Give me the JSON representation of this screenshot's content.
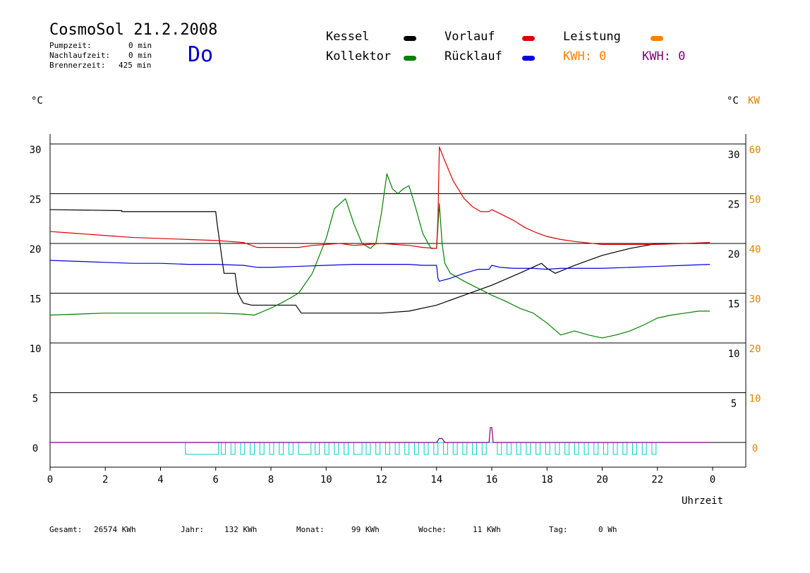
{
  "header": {
    "title": "CosmoSol 21.2.2008",
    "day": "Do",
    "stats": [
      {
        "label": "Pumpzeit:",
        "value": "0 min"
      },
      {
        "label": "Nachlaufzeit:",
        "value": "0 min"
      },
      {
        "label": "Brennerzeit:",
        "value": "425 min"
      }
    ]
  },
  "legend": {
    "kessel": "Kessel",
    "kollektor": "Kollektor",
    "vorlauf": "Vorlauf",
    "ruecklauf": "Rücklauf",
    "leistung": "Leistung",
    "kwh_orange": "KWH: 0",
    "kwh_purple": "KWH: 0"
  },
  "axes": {
    "left_unit": "°C",
    "right_unit": "°C",
    "right_unit2": "KW",
    "xlabel": "Uhrzeit"
  },
  "footer": [
    {
      "label": "Gesamt:",
      "value": "26574 KWh"
    },
    {
      "label": "Jahr:",
      "value": "132 KWh"
    },
    {
      "label": "Monat:",
      "value": "99 KWh"
    },
    {
      "label": "Woche:",
      "value": "11 KWh"
    },
    {
      "label": "Tag:",
      "value": "0 Wh"
    }
  ],
  "colors": {
    "kessel": "#000000",
    "kollektor": "#008000",
    "vorlauf": "#dd0000",
    "ruecklauf": "#0000dd",
    "leistung": "#ff8000",
    "kwh_purple": "#800080",
    "pump": "#00cccc",
    "grid": "#000000"
  },
  "chart_data": {
    "type": "line",
    "xlim": [
      0,
      24
    ],
    "ylim": [
      0,
      30
    ],
    "y2lim": [
      0,
      60
    ],
    "x_ticks": [
      "0",
      "2",
      "4",
      "6",
      "8",
      "10",
      "12",
      "14",
      "16",
      "18",
      "20",
      "22",
      "0"
    ],
    "y_ticks_left": [
      "0",
      "5",
      "10",
      "15",
      "20",
      "25",
      "30"
    ],
    "y_ticks_right": [
      "5",
      "10",
      "15",
      "20",
      "25",
      "30"
    ],
    "y2_ticks": [
      "0",
      "10",
      "20",
      "30",
      "40",
      "50",
      "60"
    ],
    "grid": true,
    "series": [
      {
        "name": "Kessel",
        "color": "#000000",
        "x": [
          0,
          2.6,
          2.6,
          6,
          6.05,
          6.2,
          6.3,
          6.7,
          6.8,
          7.0,
          7.3,
          8,
          8.9,
          9.1,
          12,
          13,
          14,
          15,
          16,
          17,
          17.8,
          18,
          18.3,
          19,
          20,
          21,
          22,
          22.5,
          23,
          23.5
        ],
        "y": [
          23.4,
          23.3,
          23.2,
          23.2,
          22,
          19,
          17,
          17,
          15,
          14,
          13.8,
          13.8,
          13.8,
          13.0,
          13.0,
          13.2,
          13.8,
          14.8,
          15.8,
          17.0,
          18.0,
          17.5,
          17.0,
          17.8,
          18.8,
          19.5,
          20.0,
          20.0,
          20.0,
          20.0
        ]
      },
      {
        "name": "Kollektor",
        "color": "#008000",
        "x": [
          0,
          1,
          2,
          3,
          4,
          5,
          6,
          7,
          7.4,
          8,
          8.5,
          9,
          9.5,
          10,
          10.3,
          10.7,
          11,
          11.3,
          11.6,
          11.8,
          12,
          12.2,
          12.4,
          12.6,
          12.8,
          13,
          13.2,
          13.5,
          13.8,
          14.0,
          14.1,
          14.2,
          14.3,
          14.5,
          15,
          15.5,
          16,
          16.5,
          17,
          17.5,
          18,
          18.5,
          19,
          19.5,
          20,
          20.5,
          21,
          21.5,
          22,
          22.5,
          23,
          23.5,
          23.9
        ],
        "y": [
          12.8,
          12.9,
          13.0,
          13.0,
          13.0,
          13.0,
          13.0,
          12.9,
          12.8,
          13.5,
          14.2,
          15,
          17,
          20.5,
          23.5,
          24.5,
          22,
          20,
          19.5,
          20,
          23,
          27,
          25.5,
          25,
          25.5,
          25.8,
          24,
          21,
          19.5,
          19.5,
          24,
          20,
          18,
          17,
          16.2,
          15.5,
          14.8,
          14.2,
          13.5,
          13.0,
          12.0,
          10.8,
          11.2,
          10.8,
          10.5,
          10.8,
          11.2,
          11.8,
          12.5,
          12.8,
          13.0,
          13.2,
          13.2
        ]
      },
      {
        "name": "Vorlauf",
        "color": "#dd0000",
        "x": [
          0,
          0.5,
          1,
          2,
          3,
          4,
          5,
          6,
          7,
          7.5,
          8,
          9,
          9.5,
          10,
          10.5,
          11,
          11.5,
          12,
          12.5,
          13,
          13.5,
          14,
          14.05,
          14.1,
          14.3,
          14.6,
          15,
          15.3,
          15.6,
          15.9,
          16.0,
          16.3,
          16.8,
          17.2,
          17.6,
          18,
          18.5,
          19,
          20,
          21,
          22,
          23,
          23.9
        ],
        "y": [
          21.2,
          21.1,
          21.0,
          20.8,
          20.6,
          20.5,
          20.4,
          20.3,
          20.1,
          19.6,
          19.6,
          19.6,
          19.8,
          19.9,
          20.0,
          19.8,
          19.9,
          20.0,
          19.9,
          19.8,
          19.6,
          19.5,
          22.5,
          29.7,
          28.3,
          26.3,
          24.5,
          23.7,
          23.2,
          23.2,
          23.4,
          23.0,
          22.3,
          21.6,
          21.1,
          20.7,
          20.4,
          20.2,
          19.9,
          19.9,
          19.9,
          20.0,
          20.1
        ]
      },
      {
        "name": "Rücklauf",
        "color": "#0000dd",
        "x": [
          0,
          1,
          2,
          3,
          4,
          5,
          6,
          7,
          7.5,
          8,
          9,
          10,
          11,
          12,
          13,
          13.5,
          14,
          14.05,
          14.1,
          14.5,
          15,
          15.5,
          15.9,
          16.0,
          16.3,
          16.8,
          17.5,
          18,
          18.5,
          19,
          20,
          21,
          22,
          23,
          23.9
        ],
        "y": [
          18.3,
          18.2,
          18.1,
          18.0,
          18.0,
          17.9,
          17.9,
          17.8,
          17.6,
          17.6,
          17.7,
          17.8,
          17.9,
          17.9,
          17.9,
          17.8,
          17.8,
          16.5,
          16.2,
          16.5,
          17.0,
          17.4,
          17.4,
          17.8,
          17.6,
          17.5,
          17.5,
          17.4,
          17.5,
          17.5,
          17.5,
          17.6,
          17.7,
          17.8,
          17.9
        ]
      },
      {
        "name": "Leistung",
        "color": "#800080",
        "x": [
          0,
          14.0,
          14.1,
          14.2,
          14.3,
          15.9,
          15.95,
          16.0,
          16.05,
          24
        ],
        "y": [
          0,
          0,
          0.4,
          0.4,
          0,
          0,
          1.5,
          1.5,
          0,
          0
        ]
      }
    ],
    "pump_pulses": [
      [
        4.9,
        6.1
      ],
      [
        6.2,
        6.35
      ],
      [
        6.55,
        6.7
      ],
      [
        6.9,
        7.05
      ],
      [
        7.25,
        7.4
      ],
      [
        7.6,
        7.75
      ],
      [
        7.95,
        8.1
      ],
      [
        8.3,
        8.45
      ],
      [
        8.65,
        8.8
      ],
      [
        9.0,
        9.45
      ],
      [
        9.6,
        9.75
      ],
      [
        9.95,
        10.1
      ],
      [
        10.3,
        10.45
      ],
      [
        10.65,
        10.8
      ],
      [
        11.0,
        11.3
      ],
      [
        11.45,
        11.6
      ],
      [
        11.8,
        11.95
      ],
      [
        12.15,
        12.3
      ],
      [
        12.5,
        12.65
      ],
      [
        12.85,
        13.0
      ],
      [
        13.2,
        13.35
      ],
      [
        13.55,
        13.7
      ],
      [
        13.9,
        14.05
      ],
      [
        14.25,
        14.4
      ],
      [
        14.6,
        14.75
      ],
      [
        14.95,
        15.1
      ],
      [
        15.3,
        15.45
      ],
      [
        15.65,
        15.8
      ],
      [
        16.2,
        16.35
      ],
      [
        16.55,
        16.7
      ],
      [
        16.9,
        17.05
      ],
      [
        17.25,
        17.4
      ],
      [
        17.6,
        17.75
      ],
      [
        17.95,
        18.1
      ],
      [
        18.3,
        18.45
      ],
      [
        18.65,
        18.8
      ],
      [
        19.0,
        19.15
      ],
      [
        19.35,
        19.5
      ],
      [
        19.7,
        19.85
      ],
      [
        20.05,
        20.2
      ],
      [
        20.4,
        20.55
      ],
      [
        20.75,
        20.9
      ],
      [
        21.1,
        21.25
      ],
      [
        21.45,
        21.6
      ],
      [
        21.8,
        21.95
      ]
    ],
    "pump_level": 1.2
  }
}
